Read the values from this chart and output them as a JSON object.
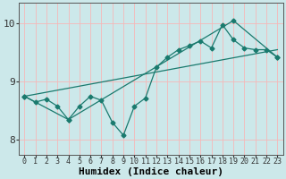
{
  "xlabel": "Humidex (Indice chaleur)",
  "ylabel": "",
  "xlim": [
    -0.5,
    23.5
  ],
  "ylim": [
    7.75,
    10.35
  ],
  "yticks": [
    8,
    9,
    10
  ],
  "xticks": [
    0,
    1,
    2,
    3,
    4,
    5,
    6,
    7,
    8,
    9,
    10,
    11,
    12,
    13,
    14,
    15,
    16,
    17,
    18,
    19,
    20,
    21,
    22,
    23
  ],
  "bg_color": "#cce8ea",
  "line_color": "#1a7a6e",
  "grid_color": "#f5b8b8",
  "series_main": {
    "x": [
      0,
      1,
      2,
      3,
      4,
      5,
      6,
      7,
      8,
      9,
      10,
      11,
      12,
      13,
      14,
      15,
      16,
      17,
      18,
      19,
      20,
      21,
      22,
      23
    ],
    "y": [
      8.75,
      8.65,
      8.7,
      8.58,
      8.35,
      8.58,
      8.75,
      8.68,
      8.3,
      8.08,
      8.58,
      8.72,
      9.25,
      9.42,
      9.55,
      9.62,
      9.7,
      9.58,
      9.98,
      9.72,
      9.58,
      9.55,
      9.55,
      9.42
    ]
  },
  "series_envelope": {
    "x": [
      0,
      4,
      19,
      23
    ],
    "y": [
      8.75,
      8.35,
      10.05,
      9.42
    ]
  },
  "series_straight": {
    "x": [
      0,
      23
    ],
    "y": [
      8.75,
      9.55
    ]
  },
  "font_size_label": 7,
  "font_size_tick": 6,
  "marker": "D",
  "marker_size": 2.5,
  "line_width": 0.9
}
